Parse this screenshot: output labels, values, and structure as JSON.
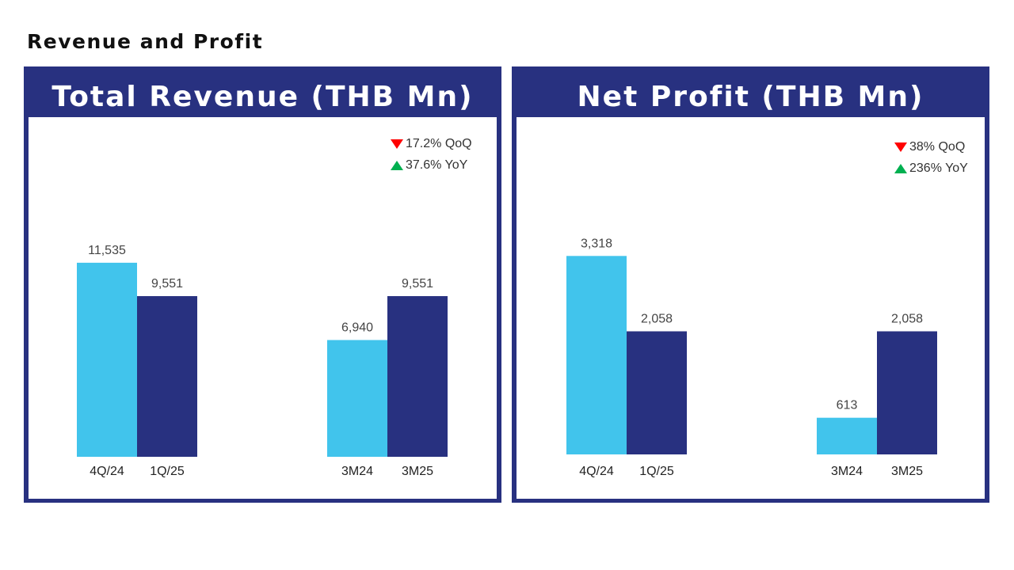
{
  "page": {
    "title": "Revenue and Profit"
  },
  "colors": {
    "frame": "#283180",
    "bar_prev": "#41C4EC",
    "bar_curr": "#283180",
    "down": "#ff0000",
    "up": "#00b050"
  },
  "panels": [
    {
      "title": "Total Revenue (THB Mn)",
      "badges": [
        {
          "direction": "down",
          "text": "17.2% QoQ"
        },
        {
          "direction": "up",
          "text": "37.6% YoY"
        }
      ]
    },
    {
      "title": "Net Profit (THB Mn)",
      "badges": [
        {
          "direction": "down",
          "text": "38% QoQ"
        },
        {
          "direction": "up",
          "text": "236% YoY"
        }
      ]
    }
  ],
  "chart_data": [
    {
      "type": "bar",
      "title": "Total Revenue (THB Mn)",
      "categories": [
        "4Q/24",
        "1Q/25",
        "3M24",
        "3M25"
      ],
      "values": [
        11535,
        9551,
        6940,
        9551
      ],
      "labels": [
        "11,535",
        "9,551",
        "6,940",
        "9,551"
      ],
      "groups": [
        [
          "4Q/24",
          "1Q/25"
        ],
        [
          "3M24",
          "3M25"
        ]
      ],
      "ylim": [
        0,
        16000
      ],
      "grid": false,
      "legend": "none"
    },
    {
      "type": "bar",
      "title": "Net Profit (THB Mn)",
      "categories": [
        "4Q/24",
        "1Q/25",
        "3M24",
        "3M25"
      ],
      "values": [
        3318,
        2058,
        613,
        2058
      ],
      "labels": [
        "3,318",
        "2,058",
        "613",
        "2,058"
      ],
      "groups": [
        [
          "4Q/24",
          "1Q/25"
        ],
        [
          "3M24",
          "3M25"
        ]
      ],
      "ylim": [
        0,
        4500
      ],
      "grid": false,
      "legend": "none"
    }
  ]
}
